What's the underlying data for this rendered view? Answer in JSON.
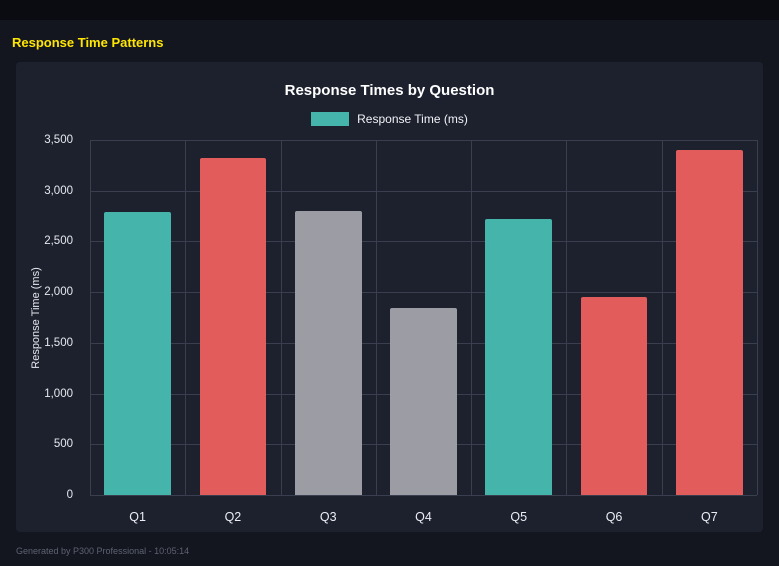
{
  "page": {
    "title": "Response Time Patterns",
    "footer": "Generated by P300 Professional - 10:05:14"
  },
  "colors": {
    "page_background": "#14161f",
    "panel_background": "#1d212e",
    "title_accent": "#ffe600",
    "teal": "#45b5ab",
    "red": "#e25c5c",
    "gray": "#9c9ca4",
    "gridline": "#3a3f50"
  },
  "chart_data": {
    "type": "bar",
    "title": "Response Times by Question",
    "legend": [
      {
        "label": "Response Time (ms)",
        "color": "#45b5ab"
      }
    ],
    "legend_position": "top",
    "categories": [
      "Q1",
      "Q2",
      "Q3",
      "Q4",
      "Q5",
      "Q6",
      "Q7"
    ],
    "values": [
      2790,
      3320,
      2800,
      1840,
      2720,
      1950,
      3400
    ],
    "bar_colors": [
      "#45b5ab",
      "#e25c5c",
      "#9c9ca4",
      "#9c9ca4",
      "#45b5ab",
      "#e25c5c",
      "#e25c5c"
    ],
    "xlabel": "",
    "ylabel": "Response Time (ms)",
    "ylim": [
      0,
      3500
    ],
    "yticks": [
      0,
      500,
      1000,
      1500,
      2000,
      2500,
      3000,
      3500
    ],
    "ytick_labels": [
      "0",
      "500",
      "1,000",
      "1,500",
      "2,000",
      "2,500",
      "3,000",
      "3,500"
    ],
    "grid": true
  }
}
